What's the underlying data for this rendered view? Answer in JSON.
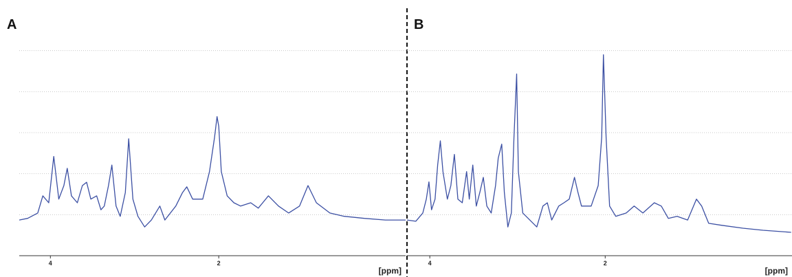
{
  "chart_data": [
    {
      "type": "line",
      "title": "A",
      "xlabel": "[ppm]",
      "x": [
        4.37,
        4.27,
        4.15,
        4.09,
        4.02,
        3.96,
        3.9,
        3.84,
        3.8,
        3.75,
        3.68,
        3.62,
        3.57,
        3.52,
        3.45,
        3.4,
        3.36,
        3.31,
        3.27,
        3.22,
        3.17,
        3.11,
        3.07,
        3.02,
        2.96,
        2.88,
        2.8,
        2.7,
        2.64,
        2.51,
        2.43,
        2.38,
        2.31,
        2.19,
        2.11,
        2.05,
        2.02,
        2.0,
        1.97,
        1.9,
        1.82,
        1.74,
        1.62,
        1.53,
        1.41,
        1.29,
        1.17,
        1.04,
        0.94,
        0.84,
        0.68,
        0.51,
        0.27,
        0.02,
        -0.22
      ],
      "series": [
        {
          "color": "#3b4fa3",
          "values": [
            0.87,
            0.91,
            1.04,
            1.46,
            1.29,
            2.42,
            1.38,
            1.71,
            2.13,
            1.46,
            1.29,
            1.71,
            1.79,
            1.38,
            1.46,
            1.12,
            1.21,
            1.71,
            2.21,
            1.21,
            0.96,
            1.54,
            2.85,
            1.38,
            0.96,
            0.7,
            0.87,
            1.21,
            0.87,
            1.21,
            1.54,
            1.68,
            1.38,
            1.38,
            2.05,
            2.89,
            3.39,
            3.15,
            2.05,
            1.46,
            1.29,
            1.21,
            1.29,
            1.16,
            1.46,
            1.21,
            1.04,
            1.21,
            1.71,
            1.29,
            1.04,
            0.96,
            0.91,
            0.87,
            0.87
          ]
        }
      ],
      "xlim": [
        4.37,
        -0.22
      ],
      "xticks": [
        4,
        2
      ],
      "ylim": [
        0,
        6
      ],
      "yticks": [
        1,
        2,
        3,
        4,
        5
      ],
      "grid": true
    },
    {
      "type": "line",
      "title": "B",
      "xlabel": "[ppm]",
      "x": [
        4.26,
        4.16,
        4.08,
        4.04,
        4.01,
        3.98,
        3.94,
        3.91,
        3.88,
        3.85,
        3.8,
        3.76,
        3.72,
        3.68,
        3.63,
        3.58,
        3.55,
        3.51,
        3.47,
        3.43,
        3.39,
        3.35,
        3.3,
        3.25,
        3.22,
        3.18,
        3.15,
        3.11,
        3.07,
        3.04,
        3.01,
        2.99,
        2.94,
        2.86,
        2.78,
        2.71,
        2.66,
        2.61,
        2.53,
        2.47,
        2.41,
        2.35,
        2.31,
        2.27,
        2.16,
        2.08,
        2.04,
        2.02,
        1.99,
        1.95,
        1.88,
        1.76,
        1.67,
        1.57,
        1.44,
        1.36,
        1.28,
        1.18,
        1.06,
        0.96,
        0.9,
        0.82,
        0.67,
        0.43,
        0.2,
        -0.12
      ],
      "series": [
        {
          "color": "#3b4fa3",
          "values": [
            0.87,
            0.84,
            1.04,
            1.38,
            1.8,
            1.12,
            1.38,
            2.21,
            2.8,
            2.05,
            1.38,
            1.71,
            2.47,
            1.38,
            1.29,
            2.05,
            1.38,
            2.21,
            1.21,
            1.54,
            1.91,
            1.21,
            1.04,
            1.71,
            2.38,
            2.72,
            1.54,
            0.7,
            1.04,
            2.89,
            4.43,
            2.05,
            1.04,
            0.87,
            0.7,
            1.21,
            1.29,
            0.87,
            1.21,
            1.29,
            1.38,
            1.91,
            1.54,
            1.21,
            1.21,
            1.71,
            2.89,
            4.9,
            2.89,
            1.21,
            0.96,
            1.04,
            1.21,
            1.04,
            1.29,
            1.21,
            0.91,
            0.96,
            0.87,
            1.38,
            1.21,
            0.79,
            0.74,
            0.67,
            0.62,
            0.57
          ]
        }
      ],
      "xlim": [
        4.26,
        -0.13
      ],
      "xticks": [
        4,
        2
      ],
      "ylim": [
        0,
        6
      ],
      "yticks": [
        1,
        2,
        3,
        4,
        5
      ],
      "grid": true
    }
  ]
}
